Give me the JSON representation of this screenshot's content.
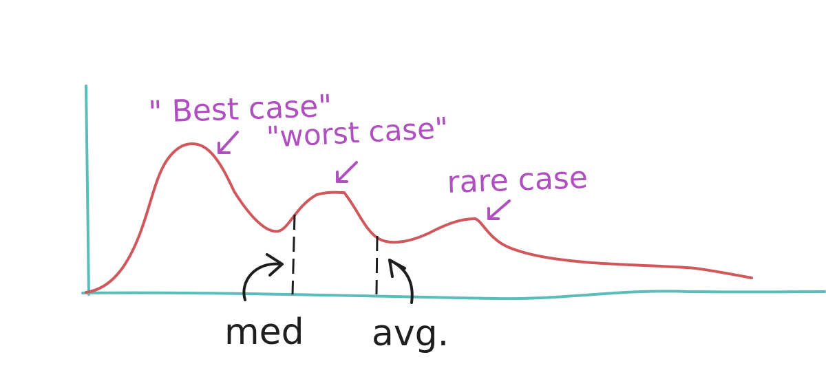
{
  "annotations": {
    "best_case": "\" Best case\"",
    "worst_case": "\"worst case\"",
    "rare_case": "rare case",
    "median": "med",
    "average": "avg."
  },
  "colors": {
    "axes": "#5bbdb9",
    "curve": "#d0575b",
    "case_labels": "#b04fc0",
    "markers": "#1e1e1e",
    "background": "#ffffff"
  }
}
